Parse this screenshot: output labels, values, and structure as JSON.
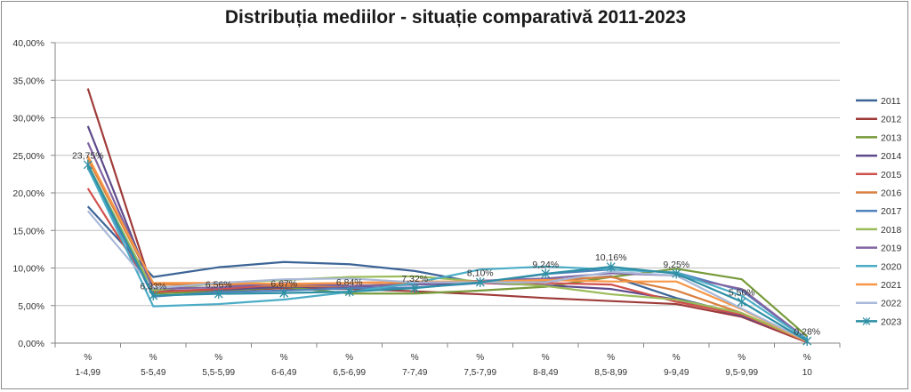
{
  "chart_data": {
    "type": "line",
    "title": "Distribuția mediilor - situație comparativă 2011-2023",
    "xlabel": "",
    "ylabel": "",
    "ylim": [
      0,
      40
    ],
    "yticks": [
      "0,00%",
      "5,00%",
      "10,00%",
      "15,00%",
      "20,00%",
      "25,00%",
      "30,00%",
      "35,00%",
      "40,00%"
    ],
    "categories": [
      [
        "%",
        "1-4,99"
      ],
      [
        "%",
        "5-5,49"
      ],
      [
        "%",
        "5,5-5,99"
      ],
      [
        "%",
        "6-6,49"
      ],
      [
        "%",
        "6,5-6,99"
      ],
      [
        "%",
        "7-7,49"
      ],
      [
        "%",
        "7,5-7,99"
      ],
      [
        "%",
        "8-8,49"
      ],
      [
        "%",
        "8,5-8,99"
      ],
      [
        "%",
        "9-9,49"
      ],
      [
        "%",
        "9,5-9,99"
      ],
      [
        "%",
        "10"
      ]
    ],
    "grid": true,
    "legend_position": "right",
    "series": [
      {
        "name": "2011",
        "color": "#3c6496",
        "values": [
          18.2,
          8.8,
          10.1,
          10.8,
          10.5,
          9.6,
          8.0,
          8.2,
          8.9,
          6.0,
          3.8,
          0.2
        ]
      },
      {
        "name": "2012",
        "color": "#9e3b38",
        "values": [
          33.9,
          6.9,
          7.0,
          7.3,
          7.2,
          6.9,
          6.5,
          6.0,
          5.6,
          5.2,
          3.5,
          0.1
        ]
      },
      {
        "name": "2013",
        "color": "#779a3a",
        "values": [
          23.5,
          6.6,
          6.9,
          7.5,
          6.6,
          6.6,
          7.0,
          7.5,
          8.8,
          9.9,
          8.5,
          0.9
        ]
      },
      {
        "name": "2014",
        "color": "#5e4a8a",
        "values": [
          28.9,
          7.0,
          7.1,
          7.5,
          7.5,
          7.8,
          8.0,
          7.7,
          7.2,
          5.8,
          3.6,
          0.3
        ]
      },
      {
        "name": "2015",
        "color": "#d0504d",
        "values": [
          20.6,
          6.8,
          7.2,
          7.8,
          8.0,
          8.2,
          8.0,
          8.0,
          7.8,
          5.5,
          3.8,
          0.2
        ]
      },
      {
        "name": "2016",
        "color": "#d98040",
        "values": [
          24.5,
          7.8,
          7.8,
          7.6,
          7.6,
          8.0,
          8.2,
          8.4,
          8.8,
          7.0,
          4.0,
          0.2
        ]
      },
      {
        "name": "2017",
        "color": "#4f81bd",
        "values": [
          23.3,
          6.2,
          6.8,
          7.0,
          7.3,
          7.4,
          8.0,
          9.2,
          9.8,
          9.4,
          7.0,
          0.5
        ]
      },
      {
        "name": "2018",
        "color": "#9bbb59",
        "values": [
          23.8,
          7.0,
          8.0,
          8.4,
          8.8,
          8.9,
          8.2,
          7.6,
          6.5,
          5.8,
          4.0,
          0.3
        ]
      },
      {
        "name": "2019",
        "color": "#8064a2",
        "values": [
          26.7,
          7.3,
          7.4,
          8.0,
          7.6,
          7.8,
          8.3,
          8.6,
          9.3,
          9.0,
          7.2,
          0.5
        ]
      },
      {
        "name": "2020",
        "color": "#4bacc6",
        "values": [
          23.4,
          4.9,
          5.2,
          5.8,
          6.8,
          8.0,
          9.8,
          10.2,
          9.8,
          9.4,
          6.3,
          0.5
        ]
      },
      {
        "name": "2021",
        "color": "#f79646",
        "values": [
          24.9,
          8.0,
          8.0,
          7.9,
          8.0,
          8.2,
          8.2,
          8.4,
          8.2,
          8.2,
          4.5,
          0.2
        ]
      },
      {
        "name": "2022",
        "color": "#a9b9d9",
        "values": [
          17.6,
          7.3,
          8.0,
          8.5,
          8.6,
          8.1,
          8.1,
          8.1,
          9.5,
          9.0,
          4.6,
          0.3
        ]
      },
      {
        "name": "2023",
        "color": "#2e8fa5",
        "marker": "asterisk",
        "values": [
          23.75,
          6.33,
          6.56,
          6.67,
          6.84,
          7.32,
          8.1,
          9.24,
          10.16,
          9.25,
          5.5,
          0.28
        ],
        "data_labels": [
          "23,75%",
          "6,33%",
          "6,56%",
          "6,67%",
          "6,84%",
          "7,32%",
          "8,10%",
          "9,24%",
          "10,16%",
          "9,25%",
          "5,50%",
          "0,28%"
        ]
      }
    ]
  }
}
